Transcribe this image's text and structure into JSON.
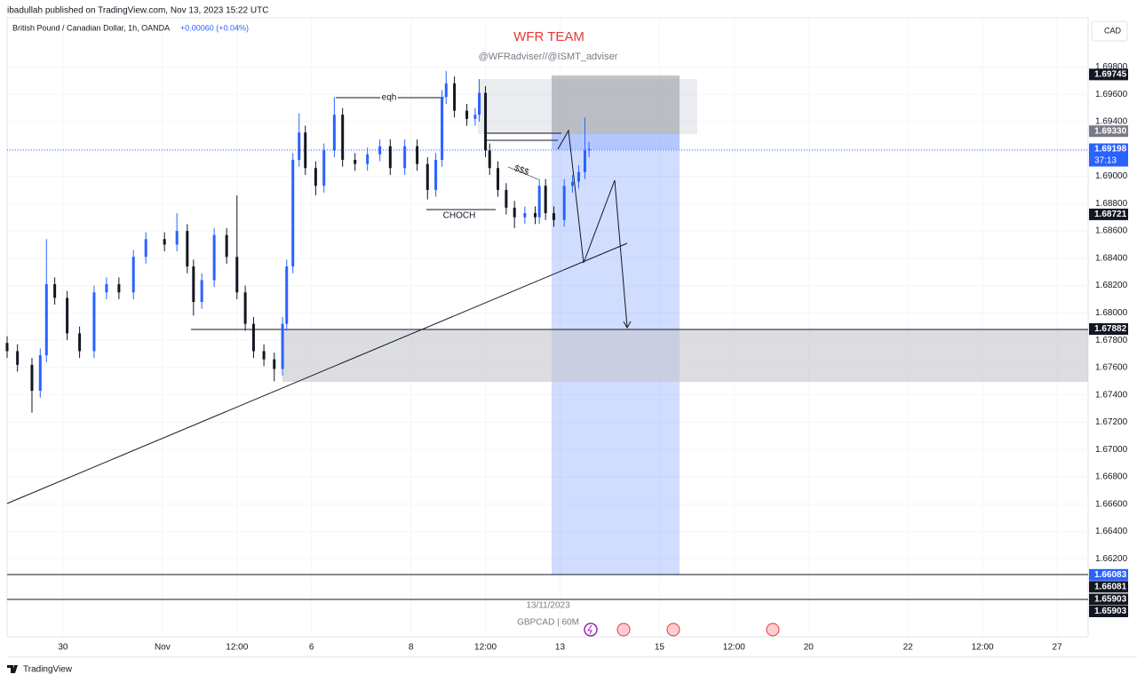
{
  "header": {
    "publisher": "ibadullah published on TradingView.com, Nov 13, 2023 15:22 UTC",
    "logo": "TradingView"
  },
  "chart_data": {
    "type": "candlestick",
    "symbol": "British Pound / Canadian Dollar, 1h, OANDA",
    "change": "+0.00060 (+0.04%)",
    "currency": "CAD",
    "title": "WFR TEAM",
    "subtitle": "@WFRadviser//@ISMT_adviser",
    "annotations": [
      "eqh",
      "$$$",
      "CHOCH"
    ],
    "watermark": [
      "13/11/2023",
      "GBPCAD | 60M"
    ],
    "up_color": "#2962ff",
    "down_color": "#131722",
    "x": [
      0,
      5,
      12,
      16,
      19,
      23,
      29,
      35,
      42,
      48,
      54,
      61,
      67,
      76,
      82,
      87,
      90,
      94,
      100,
      106,
      111,
      115,
      119,
      124,
      129,
      133,
      135,
      138,
      141,
      144,
      149,
      153,
      158,
      162,
      168,
      174,
      180,
      185,
      192,
      198,
      203,
      207,
      210,
      212,
      216,
      222,
      226,
      228,
      231,
      233,
      237,
      241,
      245,
      250,
      255,
      257,
      260,
      264,
      269,
      273,
      276,
      279,
      281
    ],
    "open": [
      1.6778,
      1.6772,
      1.6762,
      1.6743,
      1.6769,
      1.6821,
      1.6811,
      1.6785,
      1.6772,
      1.6815,
      1.6821,
      1.6815,
      1.6841,
      1.6854,
      1.685,
      1.686,
      1.6834,
      1.6808,
      1.6824,
      1.6857,
      1.6841,
      1.6815,
      1.6792,
      1.6772,
      1.6766,
      1.6759,
      1.6792,
      1.6834,
      1.6912,
      1.6932,
      1.6906,
      1.6893,
      1.6919,
      1.6945,
      1.6912,
      1.6909,
      1.6916,
      1.6922,
      1.6906,
      1.6922,
      1.6909,
      1.689,
      1.6912,
      1.6958,
      1.6968,
      1.6948,
      1.6942,
      1.6945,
      1.6961,
      1.6919,
      1.6906,
      1.689,
      1.6877,
      1.687,
      1.6873,
      1.687,
      1.6893,
      1.6873,
      1.6868,
      1.6893,
      1.6896,
      1.6903,
      1.6919
    ],
    "high": [
      1.6783,
      1.6777,
      1.6767,
      1.6774,
      1.6854,
      1.6826,
      1.6816,
      1.679,
      1.682,
      1.6826,
      1.6826,
      1.6846,
      1.6859,
      1.6859,
      1.6873,
      1.6865,
      1.6839,
      1.6829,
      1.6862,
      1.6862,
      1.6886,
      1.682,
      1.6797,
      1.6777,
      1.6771,
      1.6797,
      1.6839,
      1.6917,
      1.6946,
      1.6937,
      1.6911,
      1.6924,
      1.6958,
      1.695,
      1.6917,
      1.6921,
      1.6927,
      1.6927,
      1.6927,
      1.6927,
      1.6914,
      1.6917,
      1.6963,
      1.6977,
      1.6973,
      1.6953,
      1.695,
      1.6971,
      1.6966,
      1.6924,
      1.6911,
      1.6895,
      1.6882,
      1.6878,
      1.6878,
      1.6898,
      1.6898,
      1.6878,
      1.6898,
      1.6901,
      1.6908,
      1.6943,
      1.6925
    ],
    "low": [
      1.6767,
      1.6757,
      1.6727,
      1.6738,
      1.6764,
      1.6806,
      1.678,
      1.6767,
      1.6767,
      1.681,
      1.681,
      1.681,
      1.6836,
      1.6845,
      1.6845,
      1.6829,
      1.6798,
      1.6803,
      1.6819,
      1.6836,
      1.681,
      1.6787,
      1.6767,
      1.6761,
      1.675,
      1.6754,
      1.6787,
      1.6829,
      1.6907,
      1.6901,
      1.6886,
      1.6888,
      1.6914,
      1.6907,
      1.6904,
      1.6904,
      1.6911,
      1.6901,
      1.6901,
      1.6904,
      1.6883,
      1.6885,
      1.6907,
      1.6953,
      1.6943,
      1.6937,
      1.6937,
      1.694,
      1.6914,
      1.6901,
      1.6885,
      1.6872,
      1.6862,
      1.6865,
      1.6865,
      1.6865,
      1.6868,
      1.6863,
      1.6863,
      1.6888,
      1.6891,
      1.6898,
      1.6914
    ],
    "close": [
      1.6772,
      1.6762,
      1.6743,
      1.6769,
      1.6821,
      1.6811,
      1.6785,
      1.6772,
      1.6815,
      1.6821,
      1.6815,
      1.6841,
      1.6854,
      1.685,
      1.686,
      1.6834,
      1.6808,
      1.6824,
      1.6857,
      1.6841,
      1.6815,
      1.6792,
      1.6772,
      1.6766,
      1.6759,
      1.6792,
      1.6834,
      1.6912,
      1.6932,
      1.6906,
      1.6893,
      1.6919,
      1.6945,
      1.6912,
      1.6909,
      1.6916,
      1.6922,
      1.6906,
      1.6922,
      1.6909,
      1.689,
      1.6912,
      1.6958,
      1.6968,
      1.6948,
      1.6942,
      1.6945,
      1.6961,
      1.6919,
      1.6906,
      1.689,
      1.6877,
      1.687,
      1.6873,
      1.687,
      1.6893,
      1.6873,
      1.6868,
      1.6893,
      1.6896,
      1.6903,
      1.6919,
      1.692
    ],
    "xlim": [
      0,
      522
    ],
    "xticks": [
      {
        "value": 27,
        "label": "30"
      },
      {
        "value": 75,
        "label": "Nov"
      },
      {
        "value": 111,
        "label": "12:00"
      },
      {
        "value": 147,
        "label": "6"
      },
      {
        "value": 195,
        "label": "8"
      },
      {
        "value": 231,
        "label": "12:00"
      },
      {
        "value": 267,
        "label": "13"
      },
      {
        "value": 315,
        "label": "15"
      },
      {
        "value": 351,
        "label": "12:00"
      },
      {
        "value": 387,
        "label": "20"
      },
      {
        "value": 435,
        "label": "22"
      },
      {
        "value": 471,
        "label": "12:00"
      },
      {
        "value": 507,
        "label": "27"
      }
    ],
    "ylim": [
      1.6563,
      1.7016
    ],
    "yticks": [
      {
        "value": 1.698,
        "label": "1.69800"
      },
      {
        "value": 1.696,
        "label": "1.69600"
      },
      {
        "value": 1.694,
        "label": "1.69400"
      },
      {
        "value": 1.692,
        "label": "1.69200"
      },
      {
        "value": 1.69,
        "label": "1.69000"
      },
      {
        "value": 1.688,
        "label": "1.68800"
      },
      {
        "value": 1.686,
        "label": "1.68600"
      },
      {
        "value": 1.684,
        "label": "1.68400"
      },
      {
        "value": 1.682,
        "label": "1.68200"
      },
      {
        "value": 1.68,
        "label": "1.68000"
      },
      {
        "value": 1.678,
        "label": "1.67800"
      },
      {
        "value": 1.676,
        "label": "1.67600"
      },
      {
        "value": 1.674,
        "label": "1.67400"
      },
      {
        "value": 1.672,
        "label": "1.67200"
      },
      {
        "value": 1.67,
        "label": "1.67000"
      },
      {
        "value": 1.668,
        "label": "1.66800"
      },
      {
        "value": 1.666,
        "label": "1.66600"
      },
      {
        "value": 1.664,
        "label": "1.66400"
      },
      {
        "value": 1.662,
        "label": "1.66200"
      }
    ],
    "grid": true,
    "price_labels": [
      {
        "value": 1.69745,
        "color": "#131722"
      },
      {
        "value": 1.6933,
        "label": "1.69330",
        "color": "#787b86"
      },
      {
        "value": 1.69198,
        "color": "#2962ff"
      },
      {
        "value": 1.68721,
        "color": "#131722"
      },
      {
        "value": 1.67882,
        "color": "#131722"
      },
      {
        "value": 1.66083,
        "color": "#2962ff"
      },
      {
        "value": 1.66081,
        "color": "#131722"
      },
      {
        "value": 1.65903,
        "color": "#131722"
      },
      {
        "value": 1.65903,
        "color": "#131722"
      }
    ],
    "countdown": "37:13"
  }
}
